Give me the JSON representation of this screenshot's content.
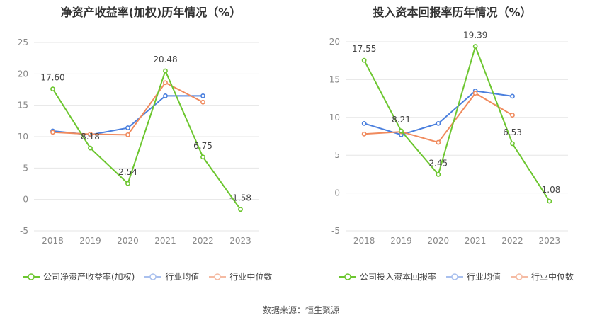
{
  "chart_data": [
    {
      "type": "line",
      "title": "净资产收益率(加权)历年情况（%）",
      "categories": [
        "2018",
        "2019",
        "2020",
        "2021",
        "2022",
        "2023"
      ],
      "ylim": [
        -5,
        25
      ],
      "yticks": [
        -5,
        0,
        5,
        10,
        15,
        20,
        25
      ],
      "grid": true,
      "legend_position": "bottom-left",
      "series": [
        {
          "name": "公司净资产收益率(加权)",
          "color": "#6cc62f",
          "values": [
            17.6,
            8.18,
            2.54,
            20.48,
            6.75,
            -1.58
          ],
          "labels": [
            "17.60",
            "8.18",
            "2.54",
            "20.48",
            "6.75",
            "-1.58"
          ]
        },
        {
          "name": "行业均值",
          "color": "#4a7fde",
          "values": [
            10.9,
            10.3,
            11.4,
            16.5,
            16.5,
            null
          ]
        },
        {
          "name": "行业中位数",
          "color": "#f08a5d",
          "values": [
            10.7,
            10.4,
            10.3,
            18.6,
            15.5,
            null
          ]
        }
      ]
    },
    {
      "type": "line",
      "title": "投入资本回报率历年情况（%）",
      "categories": [
        "2018",
        "2019",
        "2020",
        "2021",
        "2022",
        "2023"
      ],
      "ylim": [
        -5,
        20
      ],
      "yticks": [
        -5,
        0,
        5,
        10,
        15,
        20
      ],
      "grid": true,
      "legend_position": "bottom-left",
      "series": [
        {
          "name": "公司投入资本回报率",
          "color": "#6cc62f",
          "values": [
            17.55,
            8.21,
            2.45,
            19.39,
            6.53,
            -1.08
          ],
          "labels": [
            "17.55",
            "8.21",
            "2.45",
            "19.39",
            "6.53",
            "-1.08"
          ]
        },
        {
          "name": "行业均值",
          "color": "#4a7fde",
          "values": [
            9.2,
            7.7,
            9.2,
            13.5,
            12.8,
            null
          ]
        },
        {
          "name": "行业中位数",
          "color": "#f08a5d",
          "values": [
            7.8,
            8.1,
            6.7,
            13.2,
            10.3,
            null
          ]
        }
      ]
    }
  ],
  "footer": {
    "source": "数据来源：恒生聚源"
  }
}
